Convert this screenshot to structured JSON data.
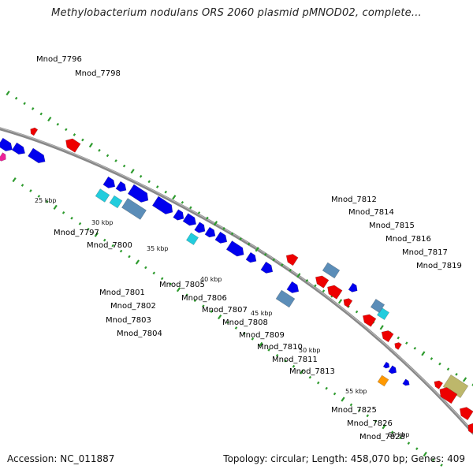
{
  "title": "Methylobacterium nodulans ORS 2060 plasmid pMNOD02, complete...",
  "footer": {
    "accession": "Accession: NC_011887",
    "summary": "Topology: circular; Length: 458,070 bp; Genes: 409"
  },
  "colors": {
    "forward_label": "#0000cc",
    "reverse_label": "#cc0000",
    "backbone": "#888888",
    "tick": "#2e9b2e",
    "forward_gene": "#0000ee",
    "reverse_gene": "#ee0000",
    "cyan_gene": "#22ccdd",
    "steel_gene": "#5b8db8",
    "orange_gene": "#ff9900",
    "khaki_gene": "#bdb76b",
    "magenta_gene": "#ee2299"
  },
  "tick_labels": [
    "25 kbp",
    "30 kbp",
    "35 kbp",
    "40 kbp",
    "45 kbp",
    "50 kbp",
    "55 kbp",
    "60 kbp"
  ],
  "reverse_genes": [
    "Mnod_7796",
    "Mnod_7798",
    "Mnod_7812",
    "Mnod_7814",
    "Mnod_7815",
    "Mnod_7816",
    "Mnod_7817",
    "Mnod_7819"
  ],
  "forward_genes": [
    "Mnod_7797",
    "Mnod_7800",
    "Mnod_7801",
    "Mnod_7802",
    "Mnod_7803",
    "Mnod_7804",
    "Mnod_7805",
    "Mnod_7806",
    "Mnod_7807",
    "Mnod_7808",
    "Mnod_7809",
    "Mnod_7810",
    "Mnod_7811",
    "Mnod_7813",
    "Mnod_7825",
    "Mnod_7826",
    "Mnod_7828"
  ]
}
